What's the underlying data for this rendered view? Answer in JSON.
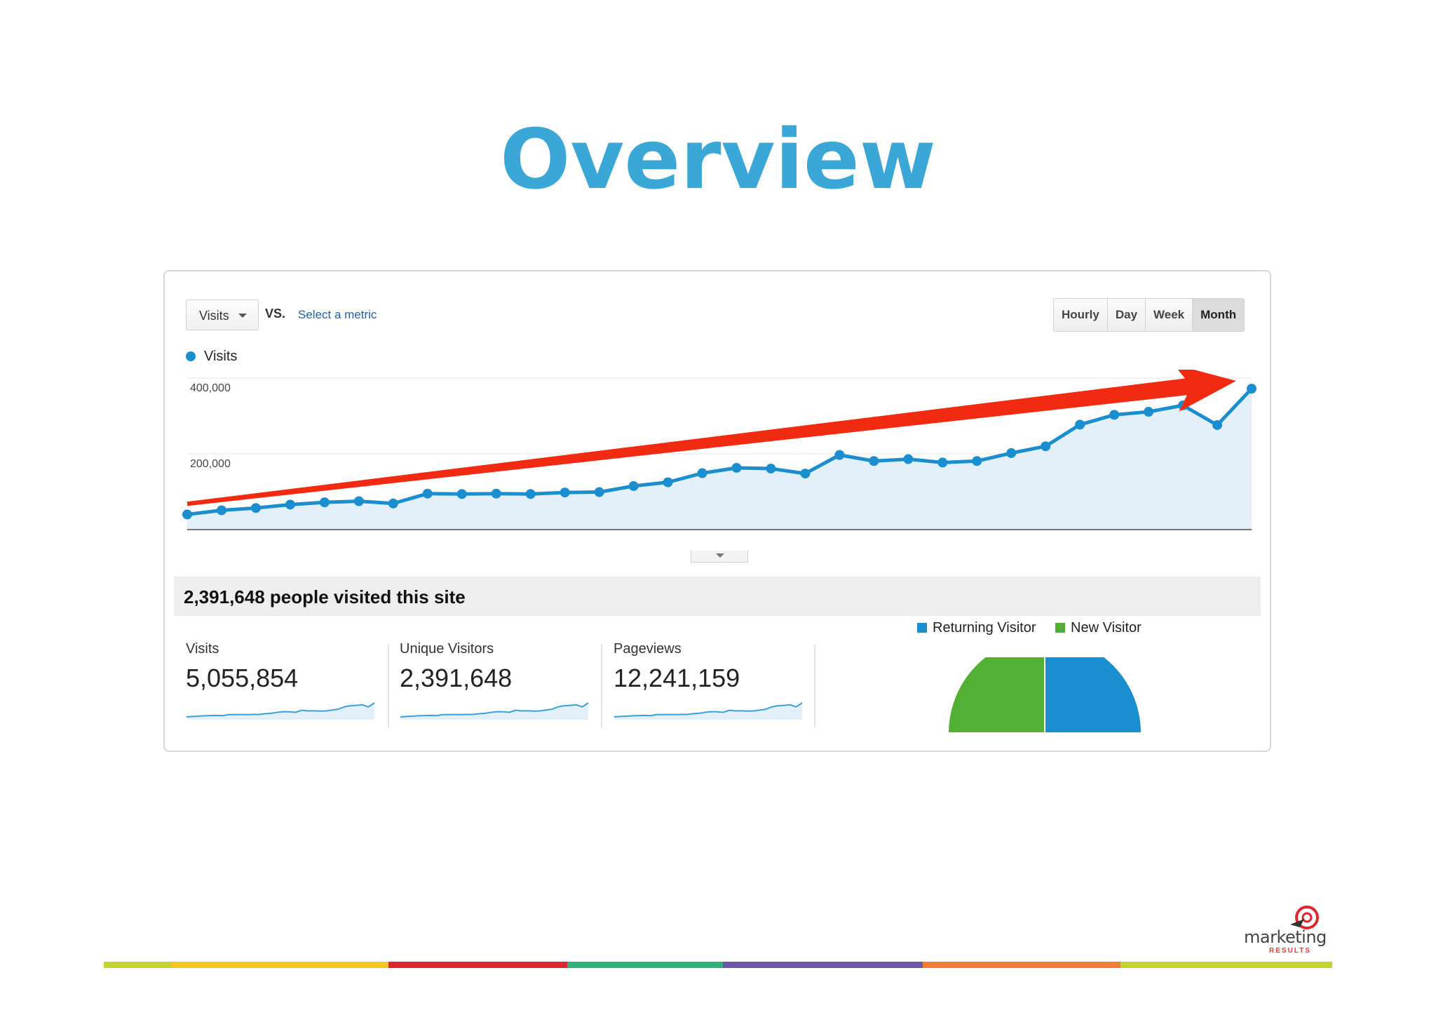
{
  "page": {
    "title": "Overview"
  },
  "toolbar": {
    "metric": "Visits",
    "vs": "VS.",
    "compare_link": "Select a metric",
    "granularity": [
      "Hourly",
      "Day",
      "Week",
      "Month"
    ],
    "active_granularity": "Month"
  },
  "chart_data": {
    "type": "line",
    "series": [
      {
        "name": "Visits",
        "values": [
          40000,
          51000,
          57000,
          66000,
          72000,
          75000,
          69000,
          95000,
          94000,
          95000,
          94000,
          98000,
          99000,
          115000,
          125000,
          149000,
          163000,
          161000,
          148000,
          197000,
          181000,
          186000,
          177000,
          181000,
          202000,
          220000,
          277000,
          303000,
          311000,
          328000,
          276000,
          372000
        ]
      }
    ],
    "y_ticks": [
      "400,000",
      "200,000"
    ],
    "ylim": [
      0,
      400000
    ],
    "legend": "top-left",
    "grid": true,
    "line_color": "#1b8ed0",
    "fill_color": "#e3f0fa",
    "annotation": "red trend arrow pointing up-right"
  },
  "summary": {
    "headline": "2,391,648 people visited this site"
  },
  "stats": [
    {
      "label": "Visits",
      "value": "5,055,854"
    },
    {
      "label": "Unique Visitors",
      "value": "2,391,648"
    },
    {
      "label": "Pageviews",
      "value": "12,241,159"
    }
  ],
  "visitor_split": {
    "legend": [
      {
        "label": "Returning Visitor",
        "color": "#1b8ed0",
        "share": 0.5
      },
      {
        "label": "New Visitor",
        "color": "#52b034",
        "share": 0.5
      }
    ]
  },
  "footer_stripe_colors": [
    "#c4d52b",
    "#f6c81b",
    "#e0262d",
    "#2fb178",
    "#6e56a8",
    "#ef7d35",
    "#c4d52b"
  ],
  "logo": {
    "word": "marketing",
    "sub": "RESULTS",
    "icon": "target-arrow-icon"
  },
  "colors": {
    "title": "#3aa7d6",
    "trend_arrow": "#f02b12"
  }
}
